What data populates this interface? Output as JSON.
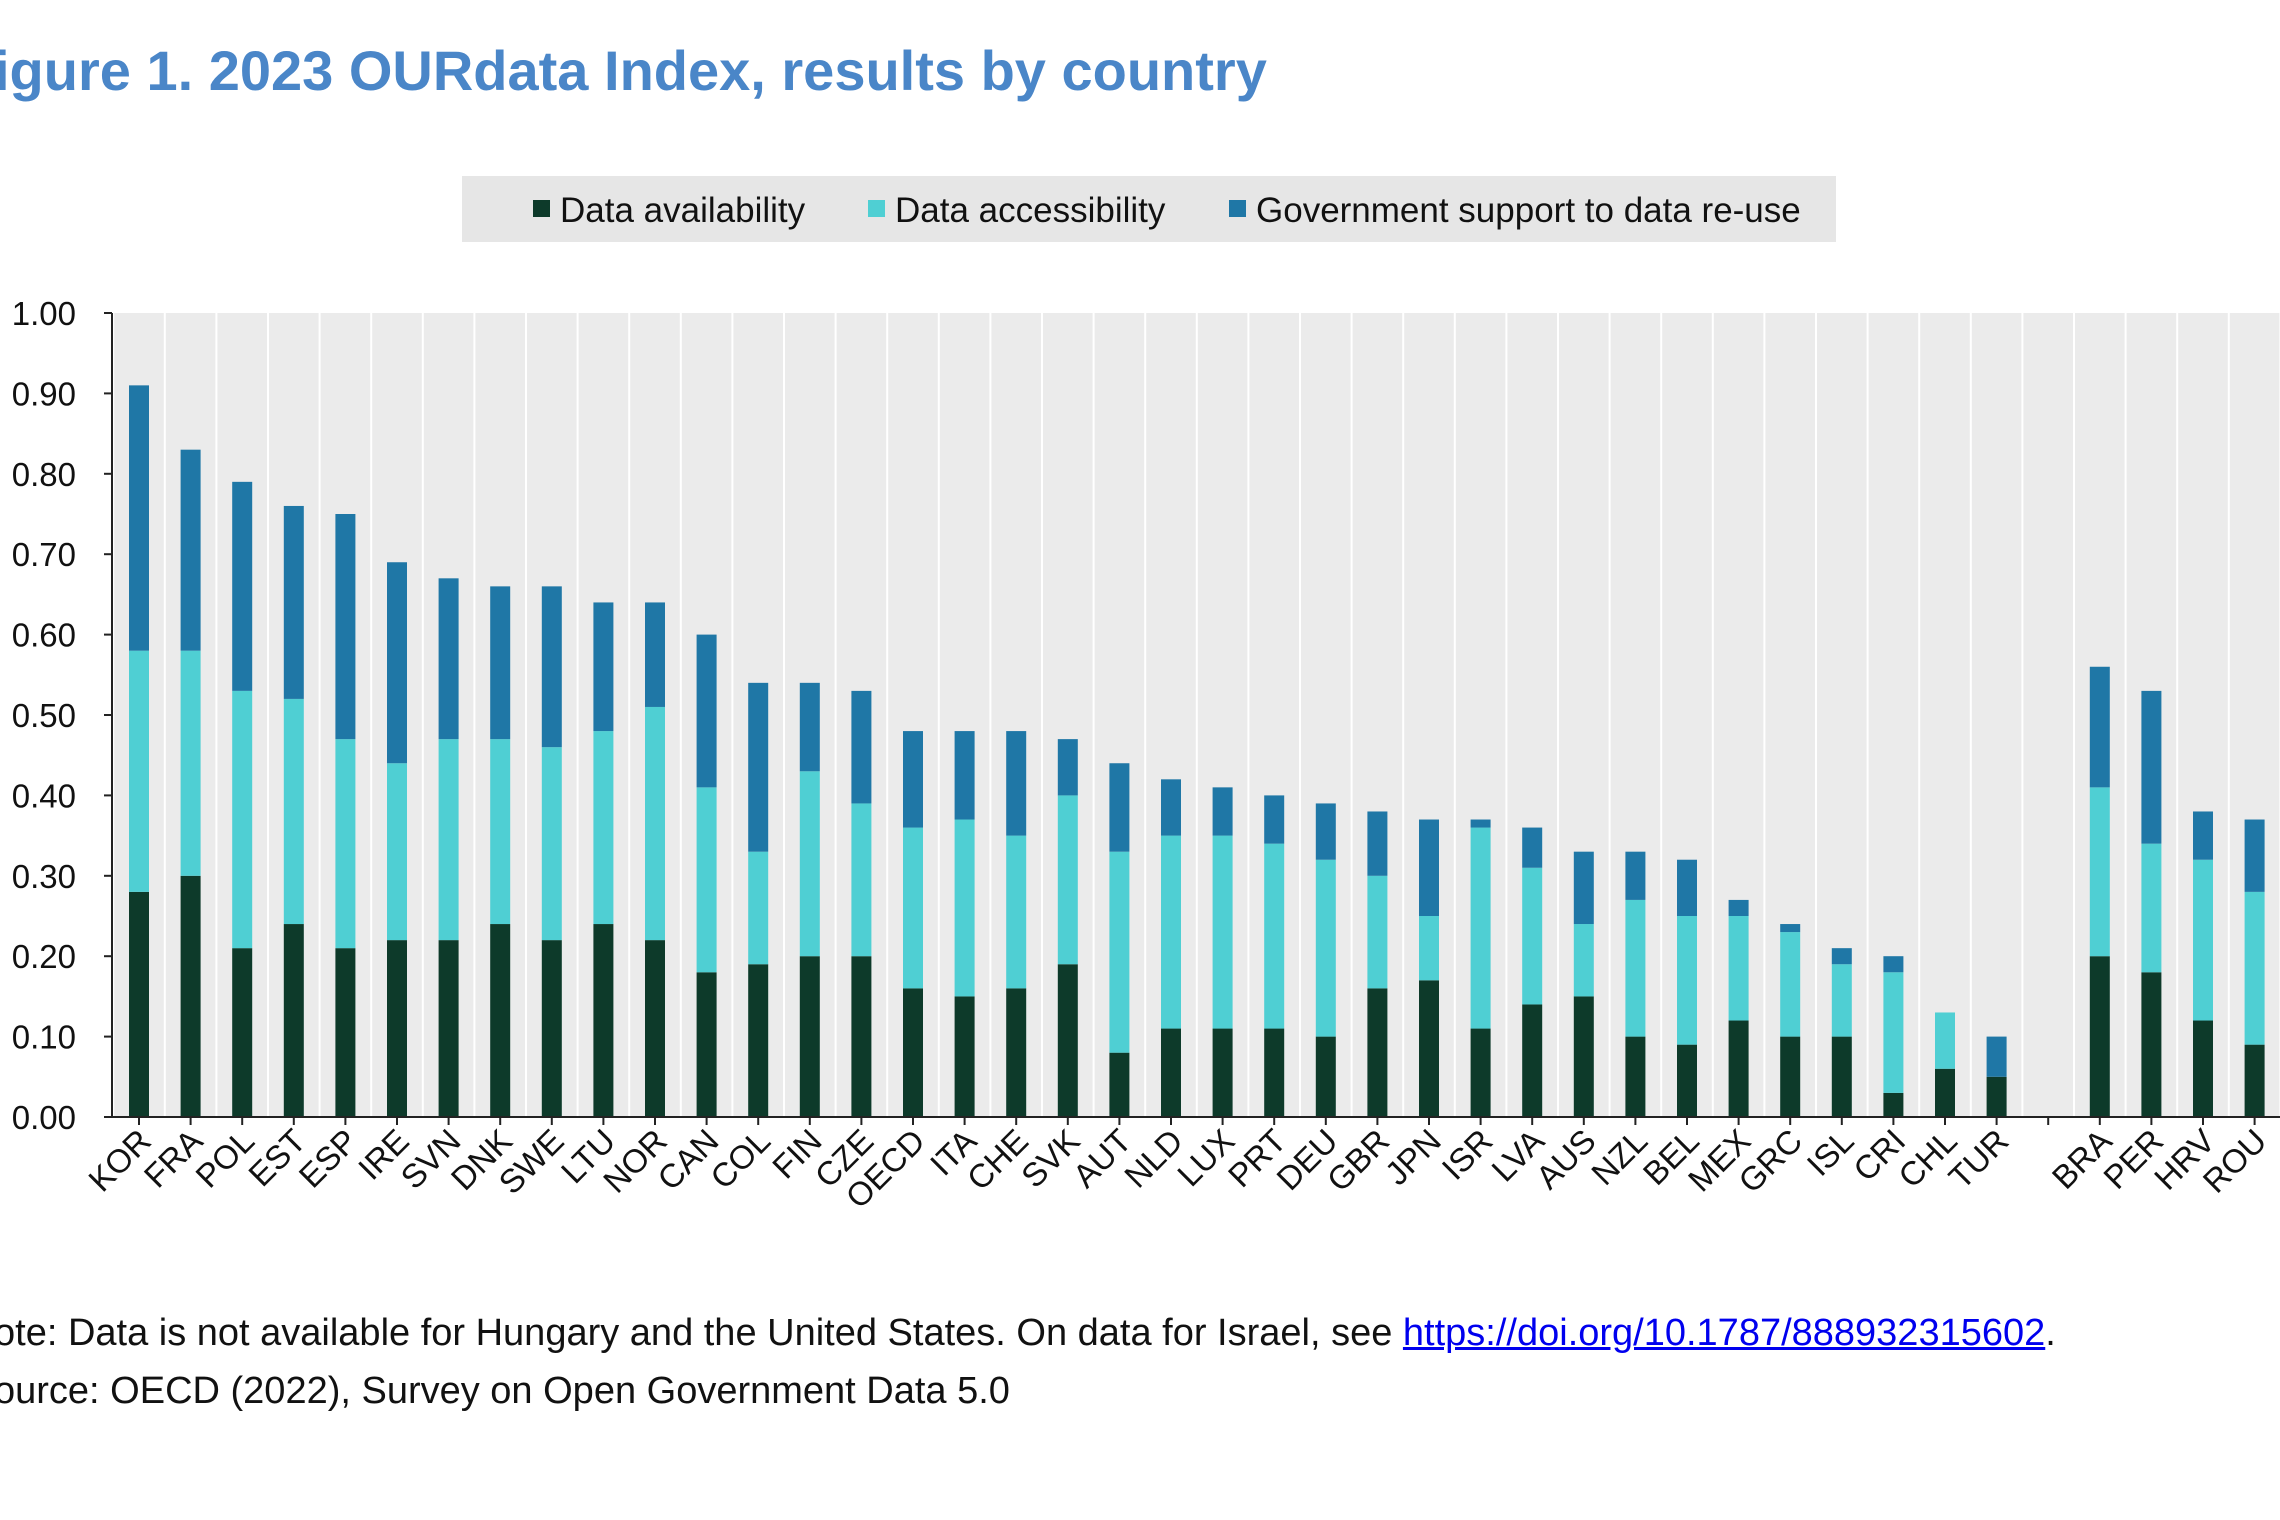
{
  "figure": {
    "title": "igure 1. 2023 OURdata Index, results by country"
  },
  "colors": {
    "availability": "#0d3a2a",
    "accessibility": "#4fcfd3",
    "support": "#1f77a6",
    "plot_bg": "#ebebeb",
    "legend_bg": "#e6e6e6",
    "title": "#4a86c8",
    "link": "#0000ee"
  },
  "notes": {
    "note_prefix": "ote: Data is not available for Hungary and the United States. On data for Israel, see ",
    "note_link": "https://doi.org/10.1787/888932315602",
    "note_suffix": ".",
    "source": "ource: OECD (2022), Survey on Open Government Data 5.0"
  },
  "chart_data": {
    "type": "bar",
    "stacked": true,
    "title": "igure 1. 2023 OURdata Index, results by country",
    "xlabel": "",
    "ylabel": "",
    "ylim": [
      0,
      1.0
    ],
    "yticks": [
      "0.00",
      "0.10",
      "0.20",
      "0.30",
      "0.40",
      "0.50",
      "0.60",
      "0.70",
      "0.80",
      "0.90",
      "1.00"
    ],
    "grid": true,
    "legend_position": "top-center",
    "categories": [
      "KOR",
      "FRA",
      "POL",
      "EST",
      "ESP",
      "IRE",
      "SVN",
      "DNK",
      "SWE",
      "LTU",
      "NOR",
      "CAN",
      "COL",
      "FIN",
      "CZE",
      "OECD",
      "ITA",
      "CHE",
      "SVK",
      "AUT",
      "NLD",
      "LUX",
      "PRT",
      "DEU",
      "GBR",
      "JPN",
      "ISR",
      "LVA",
      "AUS",
      "NZL",
      "BEL",
      "MEX",
      "GRC",
      "ISL",
      "CRI",
      "CHL",
      "TUR",
      "",
      "BRA",
      "PER",
      "HRV",
      "ROU"
    ],
    "series": [
      {
        "name": "Data availability",
        "color": "#0d3a2a",
        "values": [
          0.28,
          0.3,
          0.21,
          0.24,
          0.21,
          0.22,
          0.22,
          0.24,
          0.22,
          0.24,
          0.22,
          0.18,
          0.19,
          0.2,
          0.2,
          0.16,
          0.15,
          0.16,
          0.19,
          0.08,
          0.11,
          0.11,
          0.11,
          0.1,
          0.16,
          0.17,
          0.11,
          0.14,
          0.15,
          0.1,
          0.09,
          0.12,
          0.1,
          0.1,
          0.03,
          0.06,
          0.05,
          null,
          0.2,
          0.18,
          0.12,
          0.09
        ]
      },
      {
        "name": "Data accessibility",
        "color": "#4fcfd3",
        "values": [
          0.3,
          0.28,
          0.32,
          0.28,
          0.26,
          0.22,
          0.25,
          0.23,
          0.24,
          0.24,
          0.29,
          0.23,
          0.14,
          0.23,
          0.19,
          0.2,
          0.22,
          0.19,
          0.21,
          0.25,
          0.24,
          0.24,
          0.23,
          0.22,
          0.14,
          0.08,
          0.25,
          0.17,
          0.09,
          0.17,
          0.16,
          0.13,
          0.13,
          0.09,
          0.15,
          0.07,
          0.0,
          null,
          0.21,
          0.16,
          0.2,
          0.19
        ]
      },
      {
        "name": "Government support to data re-use",
        "color": "#1f77a6",
        "values": [
          0.33,
          0.25,
          0.26,
          0.24,
          0.28,
          0.25,
          0.2,
          0.19,
          0.2,
          0.16,
          0.13,
          0.19,
          0.21,
          0.11,
          0.14,
          0.12,
          0.11,
          0.13,
          0.07,
          0.11,
          0.07,
          0.06,
          0.06,
          0.07,
          0.08,
          0.12,
          0.01,
          0.05,
          0.09,
          0.06,
          0.07,
          0.02,
          0.01,
          0.02,
          0.02,
          0.0,
          0.05,
          null,
          0.15,
          0.19,
          0.06,
          0.09
        ]
      }
    ]
  }
}
